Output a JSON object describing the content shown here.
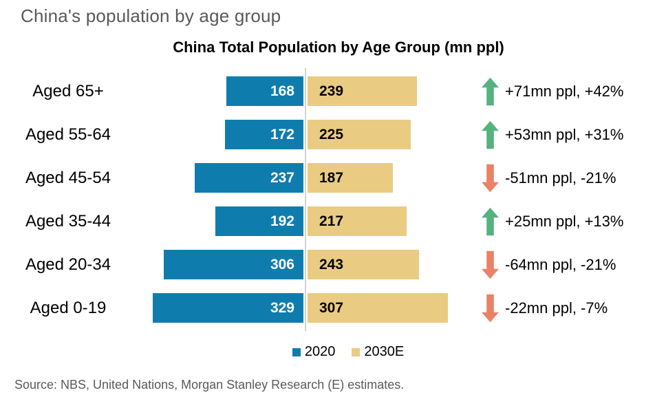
{
  "page": {
    "title": "China's population by age group",
    "source": "Source: NBS, United Nations, Morgan Stanley Research (E) estimates."
  },
  "colors": {
    "bar_2020": "#0E7DAE",
    "bar_2030": "#E9CB82",
    "up_arrow": "#55B27E",
    "down_arrow": "#E98267",
    "divider": "#D3D3D3",
    "muted_text": "#58595B"
  },
  "chart_data": {
    "type": "bar",
    "orientation": "horizontal-diverging",
    "title": "China Total Population by Age Group (mn ppl)",
    "unit": "mn ppl",
    "categories": [
      "Aged 65+",
      "Aged 55-64",
      "Aged 45-54",
      "Aged 35-44",
      "Aged 20-34",
      "Aged 0-19"
    ],
    "series": [
      {
        "name": "2020",
        "values": [
          168,
          172,
          237,
          192,
          306,
          329
        ]
      },
      {
        "name": "2030E",
        "values": [
          239,
          225,
          187,
          217,
          243,
          307
        ]
      }
    ],
    "annotations": [
      {
        "text": "+71mn ppl, +42%",
        "direction": "up"
      },
      {
        "text": "+53mn ppl, +31%",
        "direction": "up"
      },
      {
        "text": "-51mn ppl, -21%",
        "direction": "down"
      },
      {
        "text": "+25mn ppl, +13%",
        "direction": "up"
      },
      {
        "text": "-64mn ppl, -21%",
        "direction": "down"
      },
      {
        "text": "-22mn ppl, -7%",
        "direction": "down"
      }
    ],
    "value_labels": "inside-bars",
    "legend_position": "bottom-center",
    "grid": false
  }
}
